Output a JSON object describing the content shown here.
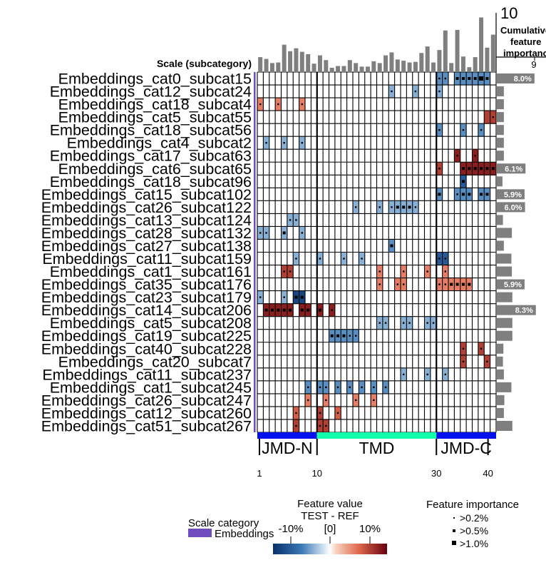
{
  "chart_data": {
    "type": "heatmap",
    "xlim": [
      1,
      40
    ],
    "ylabel": "Scale (subcategory)",
    "rows": [
      "Embeddings_cat0_subcat15",
      "Embeddings_cat12_subcat24",
      "Embeddings_cat18_subcat4",
      "Embeddings_cat5_subcat55",
      "Embeddings_cat18_subcat56",
      "Embeddings_cat4_subcat2",
      "Embeddings_cat17_subcat63",
      "Embeddings_cat6_subcat65",
      "Embeddings_cat18_subcat96",
      "Embeddings_cat15_subcat102",
      "Embeddings_cat26_subcat122",
      "Embeddings_cat13_subcat124",
      "Embeddings_cat28_subcat132",
      "Embeddings_cat27_subcat138",
      "Embeddings_cat11_subcat159",
      "Embeddings_cat1_subcat161",
      "Embeddings_cat35_subcat176",
      "Embeddings_cat23_subcat179",
      "Embeddings_cat14_subcat206",
      "Embeddings_cat5_subcat208",
      "Embeddings_cat19_subcat225",
      "Embeddings_cat40_subcat228",
      "Embeddings_cat20_subcat7",
      "Embeddings_cat11_subcat237",
      "Embeddings_cat1_subcat245",
      "Embeddings_cat26_subcat247",
      "Embeddings_cat12_subcat260",
      "Embeddings_cat51_subcat267"
    ],
    "cells": [
      [
        0,
        31,
        -0.6,
        1
      ],
      [
        0,
        32,
        -0.6,
        1
      ],
      [
        0,
        34,
        -0.6,
        2
      ],
      [
        0,
        35,
        -0.6,
        2
      ],
      [
        0,
        36,
        -0.6,
        2
      ],
      [
        0,
        37,
        -0.6,
        2
      ],
      [
        0,
        38,
        -0.6,
        3
      ],
      [
        0,
        39,
        -0.6,
        2
      ],
      [
        1,
        23,
        -0.5,
        1
      ],
      [
        1,
        27,
        -0.5,
        1
      ],
      [
        1,
        31,
        -0.5,
        1
      ],
      [
        2,
        1,
        0.6,
        1
      ],
      [
        2,
        4,
        0.6,
        1
      ],
      [
        2,
        8,
        0.6,
        1
      ],
      [
        3,
        39,
        0.8,
        0
      ],
      [
        3,
        40,
        0.8,
        1
      ],
      [
        4,
        31,
        -0.6,
        1
      ],
      [
        4,
        35,
        -0.6,
        1
      ],
      [
        4,
        38,
        -0.6,
        1
      ],
      [
        5,
        2,
        -0.5,
        1
      ],
      [
        5,
        5,
        -0.5,
        1
      ],
      [
        5,
        8,
        -0.5,
        1
      ],
      [
        6,
        34,
        0.9,
        1
      ],
      [
        6,
        37,
        0.9,
        1
      ],
      [
        7,
        31,
        0.8,
        1
      ],
      [
        7,
        35,
        0.9,
        2
      ],
      [
        7,
        36,
        0.9,
        2
      ],
      [
        7,
        37,
        0.9,
        2
      ],
      [
        7,
        38,
        0.9,
        2
      ],
      [
        7,
        39,
        0.9,
        2
      ],
      [
        7,
        40,
        0.9,
        2
      ],
      [
        8,
        35,
        -0.8,
        2
      ],
      [
        9,
        31,
        -0.6,
        2
      ],
      [
        9,
        34,
        -0.6,
        1
      ],
      [
        9,
        35,
        -0.6,
        2
      ],
      [
        9,
        36,
        -0.6,
        2
      ],
      [
        9,
        38,
        -0.6,
        2
      ],
      [
        9,
        39,
        -0.6,
        2
      ],
      [
        10,
        17,
        -0.5,
        1
      ],
      [
        10,
        21,
        -0.5,
        1
      ],
      [
        10,
        23,
        -0.5,
        1
      ],
      [
        10,
        24,
        -0.5,
        2
      ],
      [
        10,
        25,
        -0.5,
        2
      ],
      [
        10,
        26,
        -0.5,
        2
      ],
      [
        10,
        27,
        -0.5,
        1
      ],
      [
        11,
        6,
        -0.5,
        1
      ],
      [
        11,
        7,
        -0.5,
        1
      ],
      [
        12,
        1,
        -0.5,
        1
      ],
      [
        12,
        2,
        -0.5,
        1
      ],
      [
        12,
        5,
        -0.5,
        2
      ],
      [
        12,
        8,
        -0.5,
        1
      ],
      [
        13,
        23,
        -0.6,
        2
      ],
      [
        14,
        7,
        -0.5,
        1
      ],
      [
        14,
        11,
        -0.5,
        1
      ],
      [
        14,
        15,
        -0.5,
        1
      ],
      [
        14,
        18,
        -0.5,
        1
      ],
      [
        14,
        31,
        -0.8,
        1
      ],
      [
        14,
        32,
        -0.8,
        1
      ],
      [
        15,
        5,
        0.8,
        1
      ],
      [
        15,
        6,
        0.8,
        1
      ],
      [
        15,
        21,
        0.6,
        1
      ],
      [
        15,
        25,
        0.6,
        1
      ],
      [
        15,
        29,
        0.6,
        1
      ],
      [
        15,
        32,
        0.6,
        1
      ],
      [
        16,
        21,
        0.6,
        1
      ],
      [
        16,
        24,
        0.6,
        1
      ],
      [
        16,
        25,
        0.6,
        1
      ],
      [
        16,
        31,
        0.6,
        1
      ],
      [
        16,
        32,
        0.6,
        1
      ],
      [
        16,
        33,
        0.6,
        2
      ],
      [
        16,
        34,
        0.6,
        2
      ],
      [
        16,
        35,
        0.6,
        2
      ],
      [
        16,
        36,
        0.6,
        2
      ],
      [
        17,
        1,
        -0.5,
        1
      ],
      [
        17,
        5,
        -0.5,
        1
      ],
      [
        17,
        7,
        -0.9,
        2
      ],
      [
        17,
        8,
        -0.9,
        2
      ],
      [
        18,
        2,
        0.9,
        2
      ],
      [
        18,
        3,
        0.9,
        2
      ],
      [
        18,
        4,
        0.9,
        2
      ],
      [
        18,
        5,
        0.9,
        2
      ],
      [
        18,
        6,
        0.9,
        2
      ],
      [
        18,
        8,
        0.9,
        2
      ],
      [
        18,
        9,
        0.9,
        2
      ],
      [
        18,
        11,
        0.9,
        2
      ],
      [
        18,
        13,
        0.9,
        1
      ],
      [
        19,
        21,
        -0.5,
        1
      ],
      [
        19,
        22,
        -0.5,
        1
      ],
      [
        19,
        25,
        -0.5,
        1
      ],
      [
        19,
        26,
        -0.5,
        1
      ],
      [
        19,
        29,
        -0.5,
        1
      ],
      [
        19,
        30,
        -0.5,
        1
      ],
      [
        20,
        13,
        -0.6,
        2
      ],
      [
        20,
        14,
        -0.6,
        2
      ],
      [
        20,
        15,
        -0.6,
        2
      ],
      [
        20,
        16,
        -0.6,
        1
      ],
      [
        20,
        17,
        -0.6,
        1
      ],
      [
        21,
        35,
        0.8,
        1
      ],
      [
        21,
        38,
        0.8,
        1
      ],
      [
        22,
        35,
        0.8,
        1
      ],
      [
        22,
        39,
        0.8,
        1
      ],
      [
        23,
        25,
        -0.5,
        1
      ],
      [
        23,
        29,
        -0.5,
        1
      ],
      [
        23,
        32,
        -0.5,
        1
      ],
      [
        24,
        9,
        -0.6,
        1
      ],
      [
        24,
        11,
        -0.6,
        1
      ],
      [
        24,
        12,
        -0.6,
        1
      ],
      [
        24,
        14,
        -0.6,
        1
      ],
      [
        24,
        16,
        -0.6,
        1
      ],
      [
        24,
        18,
        -0.6,
        1
      ],
      [
        24,
        20,
        -0.6,
        1
      ],
      [
        24,
        22,
        -0.6,
        1
      ],
      [
        25,
        9,
        0.6,
        1
      ],
      [
        25,
        12,
        0.6,
        1
      ],
      [
        25,
        17,
        0.6,
        1
      ],
      [
        25,
        20,
        0.6,
        1
      ],
      [
        26,
        7,
        0.7,
        1
      ],
      [
        26,
        11,
        0.8,
        1
      ],
      [
        26,
        14,
        0.7,
        1
      ],
      [
        27,
        7,
        0.8,
        1
      ],
      [
        27,
        11,
        0.8,
        1
      ],
      [
        27,
        12,
        0.8,
        1
      ]
    ],
    "position_importance": [
      2.4,
      2.1,
      1.4,
      1.5,
      4.5,
      3.4,
      3.9,
      3.3,
      2.9,
      1.3,
      2.7,
      1.9,
      0.6,
      0.9,
      0.9,
      1.9,
      1.4,
      0.8,
      0.8,
      1.7,
      1.4,
      2.7,
      3.2,
      2.0,
      1.8,
      1.5,
      1.6,
      3.1,
      4.2,
      1.5,
      3.6,
      6.9,
      1.4,
      7.0,
      2.5,
      0.7,
      2.4,
      9.1,
      4.0,
      6.2
    ],
    "top_axis": {
      "title_lines": [
        "Cumulative",
        "feature",
        "importance"
      ],
      "max_label": "10",
      "tick_label": "9",
      "max": 10
    },
    "cumulative_importance": [
      8.0,
      1.5,
      1.5,
      1.5,
      1.5,
      1.5,
      1.5,
      6.1,
      1.2,
      5.9,
      6.0,
      1.3,
      3.2,
      1.5,
      3.1,
      3.2,
      5.9,
      3.3,
      8.3,
      3.3,
      3.3,
      1.4,
      1.3,
      1.5,
      3.1,
      1.6,
      1.5,
      3.3
    ],
    "cumulative_labels": {
      "0": "8.0%",
      "7": "6.1%",
      "9": "5.9%",
      "10": "6.0%",
      "16": "5.9%",
      "18": "8.3%"
    },
    "tmd": {
      "segments": [
        {
          "label": "JMD-N",
          "start": 1,
          "end": 10,
          "color": "#0011ee"
        },
        {
          "label": "TMD",
          "start": 11,
          "end": 30,
          "color": "#11ffaa"
        },
        {
          "label": "JMD-C",
          "start": 31,
          "end": 40,
          "color": "#0011ee"
        }
      ],
      "ticks": [
        {
          "pos": 1,
          "label": "1"
        },
        {
          "pos": 10,
          "label": "10"
        },
        {
          "pos": 30,
          "label": "30"
        },
        {
          "pos": 40,
          "label": "40"
        }
      ]
    },
    "legend_category": {
      "title": "Scale category",
      "items": [
        {
          "label": "Embeddings",
          "color": "#6f4bbd"
        }
      ]
    },
    "legend_value": {
      "title_line1": "Feature value",
      "title_line2": "TEST - REF",
      "ticks": [
        "-10%",
        "[0]",
        "10%"
      ]
    },
    "legend_importance": {
      "title": "Feature importance",
      "items": [
        ">0.2%",
        ">0.5%",
        ">1.0%"
      ]
    },
    "colors": {
      "grid": "#000000",
      "bar": "#7f7f7f",
      "category": "#6f4bbd",
      "negative": "#08306b",
      "positive": "#67000d"
    }
  }
}
